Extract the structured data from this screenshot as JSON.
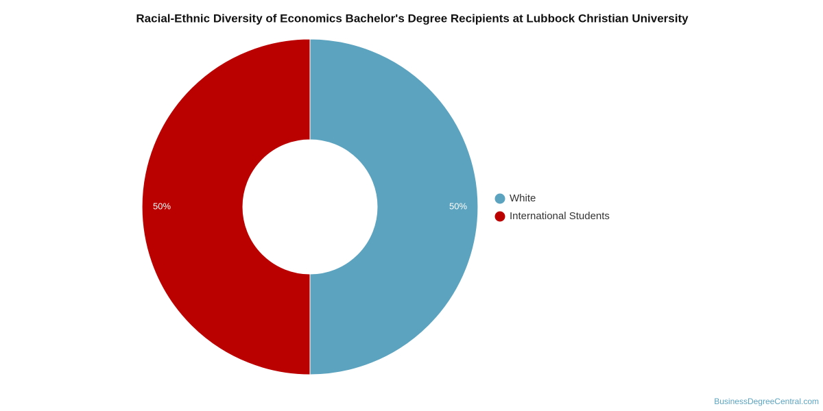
{
  "chart_data": {
    "type": "donut",
    "title": "Racial-Ethnic Diversity of Economics Bachelor's Degree Recipients at Lubbock Christian University",
    "categories": [
      "White",
      "International Students"
    ],
    "values": [
      50,
      50
    ],
    "value_labels": [
      "50%",
      "50%"
    ],
    "colors": [
      "#5ba3bf",
      "#bb0000"
    ],
    "legend": "right",
    "watermark": "BusinessDegreeCentral.com"
  }
}
